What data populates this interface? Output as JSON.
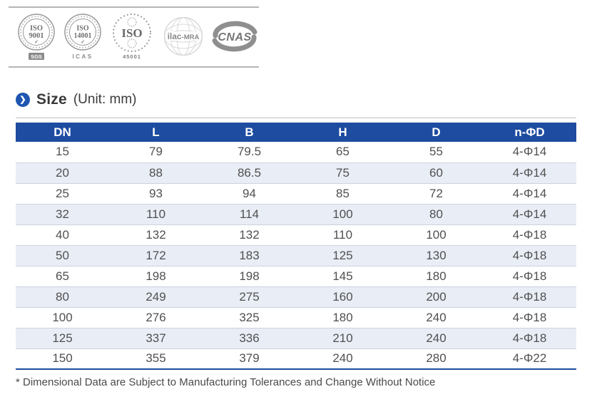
{
  "certifications": {
    "logos": [
      {
        "name": "iso-9001",
        "line1": "ISO",
        "line2": "9001",
        "check": "✓",
        "sub": "SGS"
      },
      {
        "name": "iso-14001",
        "line1": "ISO",
        "line2": "14001",
        "check": "✓",
        "sub": "ICAS"
      },
      {
        "name": "iso-45001",
        "line1": "ISO",
        "sub": "45001"
      },
      {
        "name": "ilac-mra",
        "label1": "ilac",
        "label2": "-MRA"
      },
      {
        "name": "cnas",
        "label": "CNAS"
      }
    ]
  },
  "heading": {
    "title": "Size",
    "unit": "(Unit: mm)"
  },
  "table": {
    "columns": [
      "DN",
      "L",
      "B",
      "H",
      "D",
      "n-ΦD"
    ],
    "rows": [
      [
        "15",
        "79",
        "79.5",
        "65",
        "55",
        "4-Φ14"
      ],
      [
        "20",
        "88",
        "86.5",
        "75",
        "60",
        "4-Φ14"
      ],
      [
        "25",
        "93",
        "94",
        "85",
        "72",
        "4-Φ14"
      ],
      [
        "32",
        "110",
        "114",
        "100",
        "80",
        "4-Φ14"
      ],
      [
        "40",
        "132",
        "132",
        "110",
        "100",
        "4-Φ18"
      ],
      [
        "50",
        "172",
        "183",
        "125",
        "130",
        "4-Φ18"
      ],
      [
        "65",
        "198",
        "198",
        "145",
        "180",
        "4-Φ18"
      ],
      [
        "80",
        "249",
        "275",
        "160",
        "200",
        "4-Φ18"
      ],
      [
        "100",
        "276",
        "325",
        "180",
        "240",
        "4-Φ18"
      ],
      [
        "125",
        "337",
        "336",
        "210",
        "240",
        "4-Φ18"
      ],
      [
        "150",
        "355",
        "379",
        "240",
        "280",
        "4-Φ22"
      ]
    ]
  },
  "footnote": "* Dimensional Data are Subject to Manufacturing Tolerances and Change Without Notice",
  "icons": {
    "chevron_right": "❯"
  },
  "colors": {
    "header_blue": "#1d4ca0",
    "row_alt": "#e9edf6",
    "accent_circle": "#1e56b0"
  }
}
